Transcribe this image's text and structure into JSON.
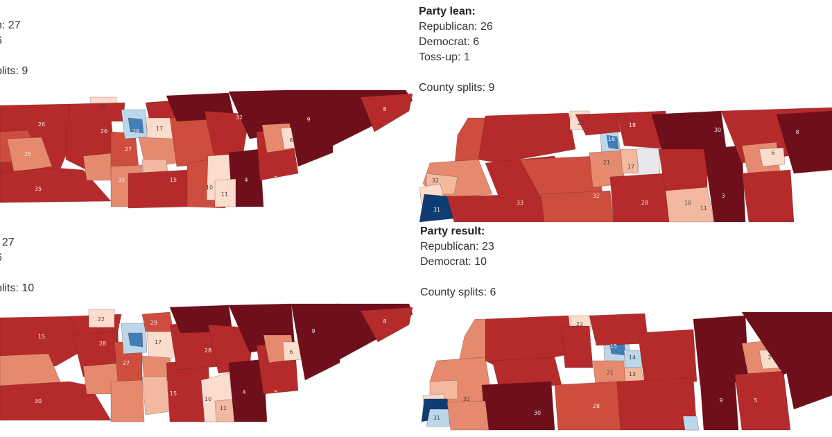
{
  "colors": {
    "deep_red": "#6e0f1b",
    "red": "#b52b2b",
    "mid_red": "#cd4e3e",
    "salmon": "#e58a6e",
    "light_salmon": "#f3b9a0",
    "pale": "#fbdccd",
    "light_blue": "#bcd7ea",
    "blue": "#3e7fb8",
    "navy": "#0e3d74",
    "gray_white": "#e8e8ec"
  },
  "panels": [
    {
      "id": "top-left",
      "stats": [
        ":",
        "n: 27",
        "6",
        "",
        "plits: 9"
      ],
      "district_labels": [
        "22",
        "26",
        "26",
        "28",
        "17",
        "27",
        "25",
        "33",
        "15",
        "32",
        "6",
        "10",
        "11",
        "4",
        "5",
        "9",
        "8",
        "35"
      ]
    },
    {
      "id": "top-right",
      "stats_title": "Party lean:",
      "stats": [
        "Republican: 26",
        "Democrat: 6",
        "Toss-up: 1",
        "",
        "County splits: 9"
      ],
      "district_labels": [
        "22",
        "16",
        "18",
        "32",
        "30",
        "6",
        "8",
        "21",
        "17",
        "31",
        "33",
        "32",
        "28",
        "10",
        "11",
        "3"
      ]
    },
    {
      "id": "bottom-left",
      "stats": [
        ":",
        ": 27",
        "6",
        "",
        "plits: 10"
      ],
      "district_labels": [
        "22",
        "15",
        "17",
        "28",
        "29",
        "27",
        "28",
        "15",
        "6",
        "10",
        "11",
        "4",
        "5",
        "9",
        "8",
        "30"
      ]
    },
    {
      "id": "bottom-right",
      "stats_title": "Party result:",
      "stats": [
        "Republican: 23",
        "Democrat: 10",
        "",
        "County splits: 6"
      ],
      "district_labels": [
        "22",
        "19",
        "15",
        "14",
        "13",
        "21",
        "32",
        "30",
        "9",
        "2",
        "5",
        "31",
        "28"
      ]
    }
  ]
}
